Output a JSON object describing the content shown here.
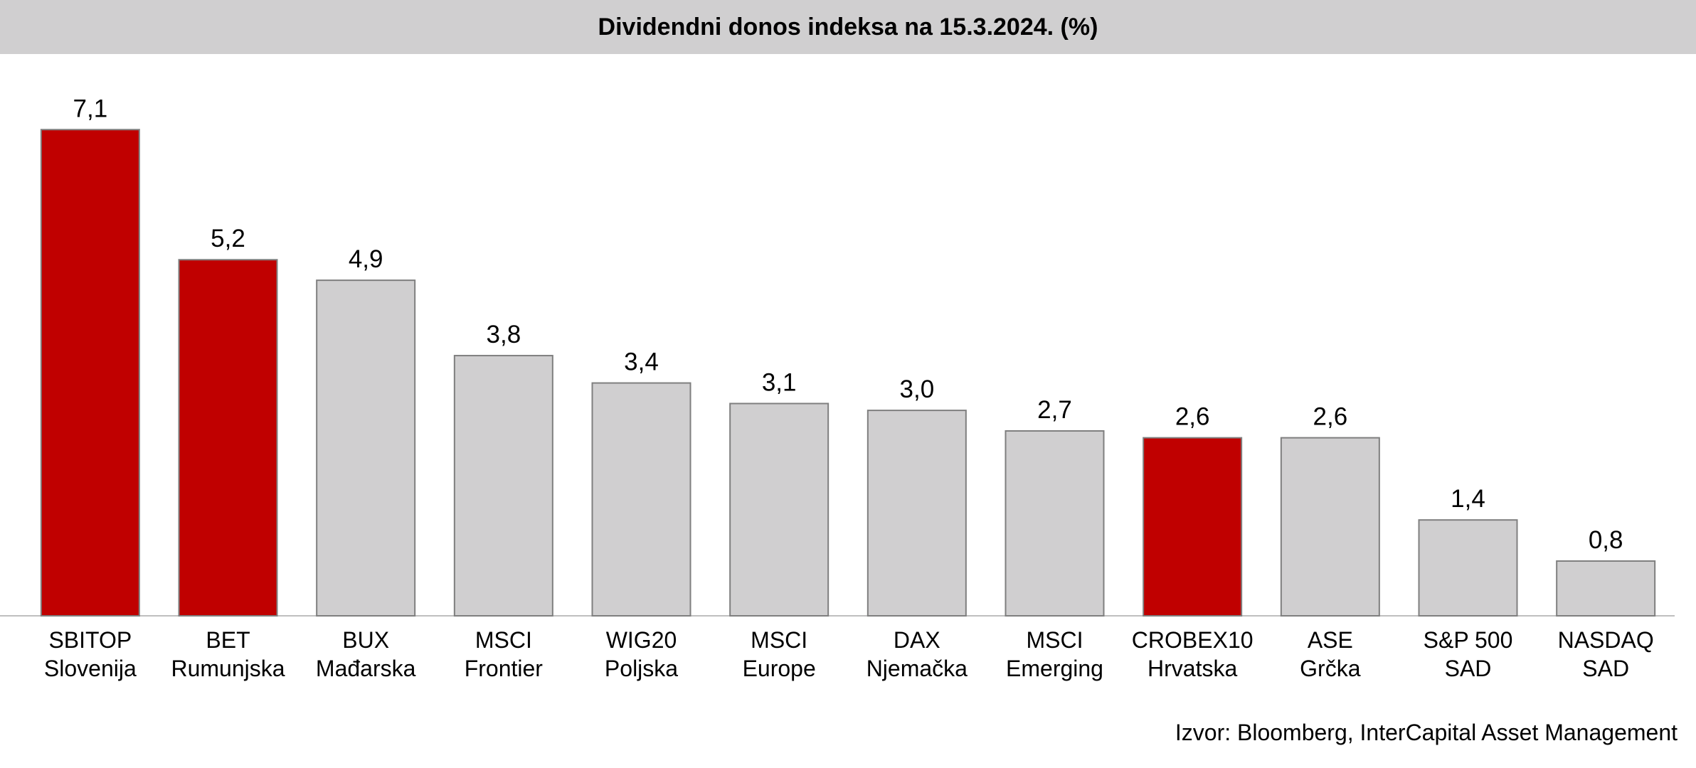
{
  "chart_data": {
    "type": "bar",
    "title": "Dividendni donos indeksa na 15.3.2024. (%)",
    "xlabel": "",
    "ylabel": "",
    "categories": [
      [
        "SBITOP",
        "Slovenija"
      ],
      [
        "BET",
        "Rumunjska"
      ],
      [
        "BUX",
        "Mađarska"
      ],
      [
        "MSCI",
        "Frontier"
      ],
      [
        "WIG20",
        "Poljska"
      ],
      [
        "MSCI",
        "Europe"
      ],
      [
        "DAX",
        "Njemačka"
      ],
      [
        "MSCI",
        "Emerging"
      ],
      [
        "CROBEX10",
        "Hrvatska"
      ],
      [
        "ASE",
        "Grčka"
      ],
      [
        "S&P 500",
        "SAD"
      ],
      [
        "NASDAQ",
        "SAD"
      ]
    ],
    "values": [
      7.1,
      5.2,
      4.9,
      3.8,
      3.4,
      3.1,
      3.0,
      2.7,
      2.6,
      2.6,
      1.4,
      0.8
    ],
    "value_labels": [
      "7,1",
      "5,2",
      "4,9",
      "3,8",
      "3,4",
      "3,1",
      "3,0",
      "2,7",
      "2,6",
      "2,6",
      "1,4",
      "0,8"
    ],
    "highlighted": [
      true,
      true,
      false,
      false,
      false,
      false,
      false,
      false,
      true,
      false,
      false,
      false
    ],
    "ylim": [
      0,
      7.8
    ],
    "grid": false,
    "legend": "none",
    "colors": {
      "highlight": "#c00000",
      "default": "#d0cfd0",
      "bar_border": "#7f7f7f",
      "axis": "#bfbfbf"
    }
  },
  "source": "Izvor: Bloomberg, InterCapital Asset Management"
}
